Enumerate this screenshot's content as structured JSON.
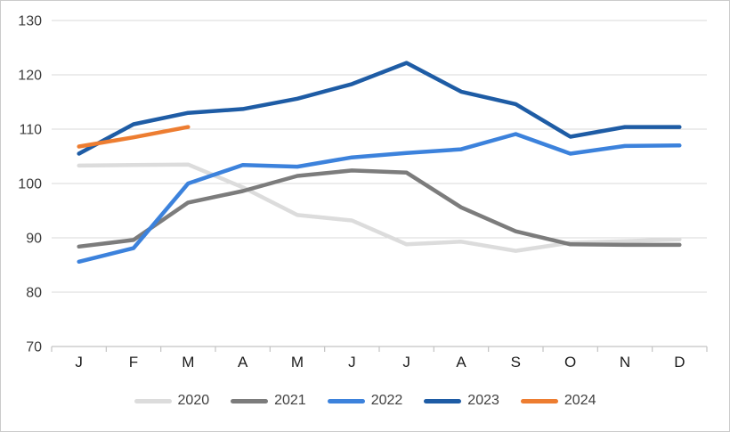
{
  "chart_data": {
    "type": "line",
    "title": "",
    "xlabel": "",
    "ylabel": "",
    "x_categories": [
      "J",
      "F",
      "M",
      "A",
      "M",
      "J",
      "J",
      "A",
      "S",
      "O",
      "N",
      "D"
    ],
    "y_ticks": [
      70,
      80,
      90,
      100,
      110,
      120,
      130
    ],
    "ylim": [
      70,
      130
    ],
    "grid": true,
    "legend_position": "bottom",
    "series": [
      {
        "name": "2020",
        "color": "#DCDCDC",
        "values": [
          103.3,
          103.4,
          103.5,
          99.3,
          94.2,
          93.2,
          88.8,
          89.3,
          87.6,
          89.1,
          89.4,
          89.7
        ]
      },
      {
        "name": "2021",
        "color": "#7C7C7C",
        "values": [
          88.4,
          89.6,
          96.5,
          98.6,
          101.4,
          102.4,
          102.0,
          95.6,
          91.2,
          88.8,
          88.7,
          88.7
        ]
      },
      {
        "name": "2022",
        "color": "#3C82DC",
        "values": [
          85.6,
          88.1,
          100.0,
          103.4,
          103.1,
          104.8,
          105.6,
          106.3,
          109.1,
          105.5,
          106.9,
          107.0
        ]
      },
      {
        "name": "2023",
        "color": "#1E5CA5",
        "values": [
          105.5,
          110.9,
          113.0,
          113.7,
          115.6,
          118.3,
          122.2,
          116.9,
          114.6,
          108.6,
          110.4,
          110.4
        ]
      },
      {
        "name": "2024",
        "color": "#ED7D31",
        "values": [
          106.8,
          108.5,
          110.4,
          null,
          null,
          null,
          null,
          null,
          null,
          null,
          null,
          null
        ]
      }
    ],
    "style": {
      "gridline_color": "#D9D9D9",
      "axis_color": "#C3C3C3",
      "y_label_color": "#3D3D3D",
      "x_label_color": "#1C1C1C",
      "line_width": 4.5
    }
  }
}
